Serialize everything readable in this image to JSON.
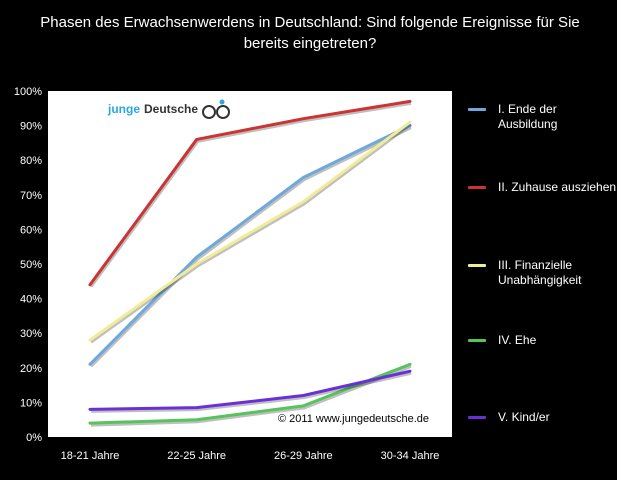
{
  "chart_data": {
    "type": "line",
    "title": "Phasen des Erwachsenwerdens in Deutschland: Sind folgende Ereignisse für Sie bereits eingetreten?",
    "categories": [
      "18-21 Jahre",
      "22-25 Jahre",
      "26-29 Jahre",
      "30-34 Jahre"
    ],
    "ylim": [
      0,
      100
    ],
    "yticks": [
      "0%",
      "10%",
      "20%",
      "30%",
      "40%",
      "50%",
      "60%",
      "70%",
      "80%",
      "90%",
      "100%"
    ],
    "grid": false,
    "legend_position": "right",
    "series": [
      {
        "name": "I.   Ende der\nAusbildung",
        "color": "#6fa8dc",
        "values": [
          21,
          52,
          75,
          90
        ]
      },
      {
        "name": "II.  Zuhause ausziehen",
        "color": "#cc3333",
        "values": [
          44,
          86,
          92,
          97
        ]
      },
      {
        "name": "III. Finanzielle\nUnabhängigkeit",
        "color": "#f2ec99",
        "values": [
          28,
          50,
          68,
          91
        ]
      },
      {
        "name": "IV.  Ehe",
        "color": "#55c45a",
        "values": [
          4,
          5,
          9,
          21
        ]
      },
      {
        "name": "V.   Kind/er",
        "color": "#6a2fd6",
        "values": [
          8,
          8.5,
          12,
          19
        ]
      }
    ]
  },
  "watermark": {
    "logo_word1": "junge",
    "logo_word2": "Deutsche",
    "copyright": "© 2011 www.jungedeutsche.de"
  }
}
